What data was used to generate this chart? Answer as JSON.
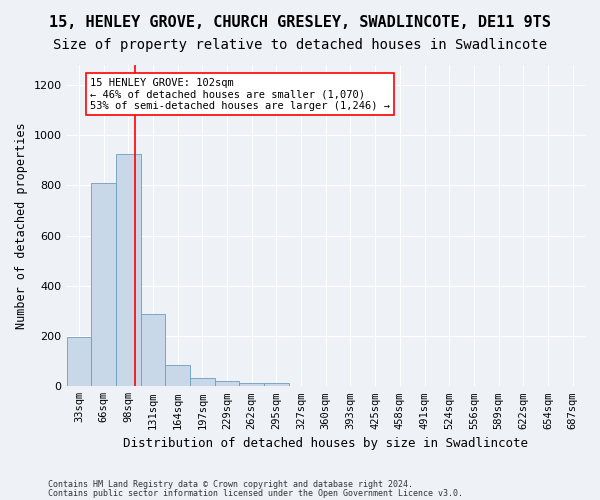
{
  "title": "15, HENLEY GROVE, CHURCH GRESLEY, SWADLINCOTE, DE11 9TS",
  "subtitle": "Size of property relative to detached houses in Swadlincote",
  "xlabel": "Distribution of detached houses by size in Swadlincote",
  "ylabel": "Number of detached properties",
  "footer_line1": "Contains HM Land Registry data © Crown copyright and database right 2024.",
  "footer_line2": "Contains public sector information licensed under the Open Government Licence v3.0.",
  "bin_labels": [
    "33sqm",
    "66sqm",
    "98sqm",
    "131sqm",
    "164sqm",
    "197sqm",
    "229sqm",
    "262sqm",
    "295sqm",
    "327sqm",
    "360sqm",
    "393sqm",
    "425sqm",
    "458sqm",
    "491sqm",
    "524sqm",
    "556sqm",
    "589sqm",
    "622sqm",
    "654sqm",
    "687sqm"
  ],
  "bar_values": [
    195,
    810,
    925,
    290,
    85,
    35,
    20,
    15,
    12,
    0,
    0,
    0,
    0,
    0,
    0,
    0,
    0,
    0,
    0,
    0,
    0
  ],
  "bar_color": "#c8d8e8",
  "bar_edge_color": "#6a9ec0",
  "property_line_bin_index": 2.27,
  "annotation_text": "15 HENLEY GROVE: 102sqm\n← 46% of detached houses are smaller (1,070)\n53% of semi-detached houses are larger (1,246) →",
  "annotation_box_color": "white",
  "annotation_box_edge_color": "red",
  "vline_color": "red",
  "ylim": [
    0,
    1280
  ],
  "yticks": [
    0,
    200,
    400,
    600,
    800,
    1000,
    1200
  ],
  "background_color": "#eef2f7",
  "axes_background": "#eef2f7",
  "grid_color": "white",
  "title_fontsize": 11,
  "subtitle_fontsize": 10,
  "tick_fontsize": 7.5
}
